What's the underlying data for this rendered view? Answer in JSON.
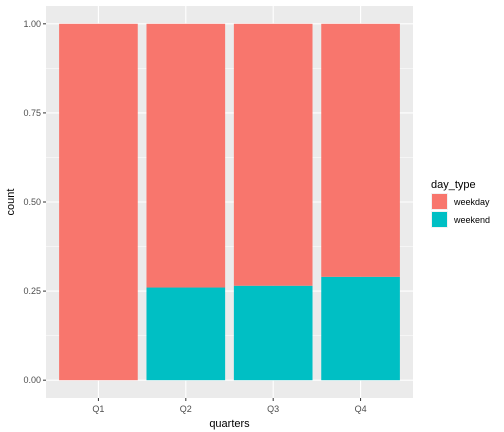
{
  "chart_data": {
    "type": "bar",
    "stacked": true,
    "categories": [
      "Q1",
      "Q2",
      "Q3",
      "Q4"
    ],
    "series": [
      {
        "name": "weekday",
        "color": "#F8766D",
        "values": [
          1.0,
          0.74,
          0.735,
          0.71
        ]
      },
      {
        "name": "weekend",
        "color": "#00BFC4",
        "values": [
          0.0,
          0.26,
          0.265,
          0.29
        ]
      }
    ],
    "xlabel": "quarters",
    "ylabel": "count",
    "ylim": [
      0,
      1
    ],
    "yticks": [
      "0.00",
      "0.25",
      "0.50",
      "0.75",
      "1.00"
    ],
    "ytick_values": [
      0,
      0.25,
      0.5,
      0.75,
      1.0
    ],
    "legend": {
      "title": "day_type",
      "position": "right"
    },
    "grid": true,
    "panel_background": "#EBEBEB"
  }
}
